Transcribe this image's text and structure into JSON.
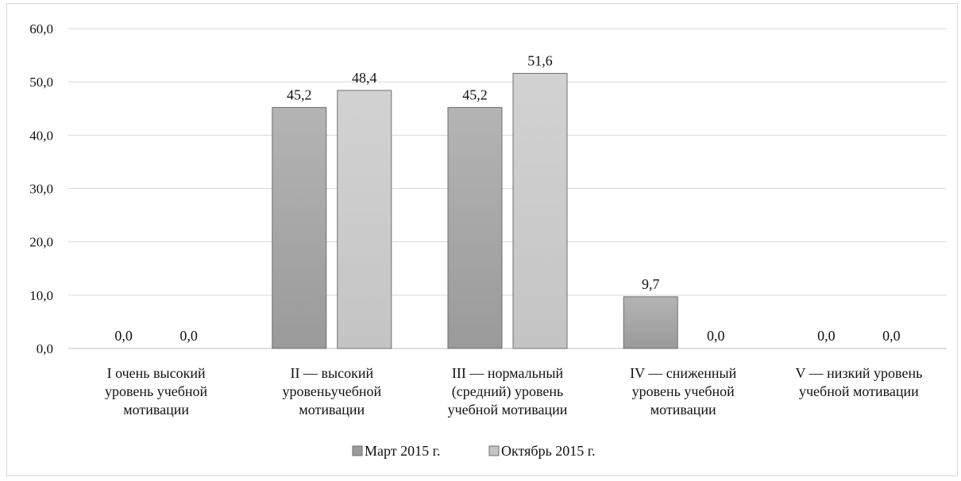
{
  "chart_data": {
    "type": "bar",
    "categories": [
      [
        "I очень высокий",
        "уровень учебной",
        "мотивации"
      ],
      [
        "II — высокий",
        "уровеньучебной",
        "мотивации"
      ],
      [
        "III — нормальный",
        "(средний) уровень",
        "учебной мотивации"
      ],
      [
        "IV — сниженный",
        "уровень учебной",
        "мотивации"
      ],
      [
        "V — низкий уровень",
        "учебной мотивации"
      ]
    ],
    "series": [
      {
        "name": "Март 2015 г.",
        "values": [
          0.0,
          45.2,
          45.2,
          9.7,
          0.0
        ],
        "labels": [
          "0,0",
          "45,2",
          "45,2",
          "9,7",
          "0,0"
        ],
        "color": "#9a9a9a"
      },
      {
        "name": "Октябрь 2015 г.",
        "values": [
          0.0,
          48.4,
          51.6,
          0.0,
          0.0
        ],
        "labels": [
          "0,0",
          "48,4",
          "51,6",
          "0,0",
          "0,0"
        ],
        "color": "#c4c4c4"
      }
    ],
    "ylim": [
      0,
      60
    ],
    "yticks": [
      0,
      10,
      20,
      30,
      40,
      50,
      60
    ],
    "ytick_labels": [
      "0,0",
      "10,0",
      "20,0",
      "30,0",
      "40,0",
      "50,0",
      "60,0"
    ],
    "grid": true,
    "legend_position": "bottom",
    "title": "",
    "xlabel": "",
    "ylabel": ""
  }
}
